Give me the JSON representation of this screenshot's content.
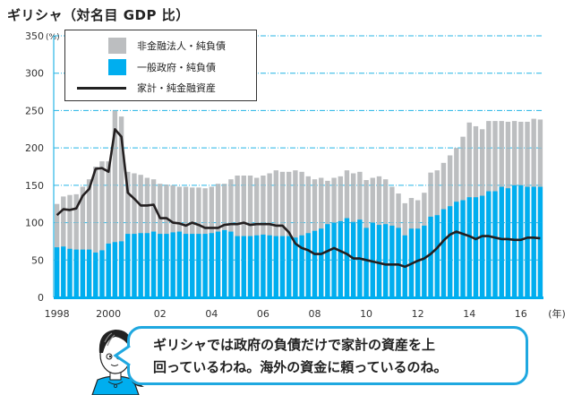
{
  "title": "ギリシャ（対名目 GDP 比）",
  "colors": {
    "gray": "#bcbec0",
    "blue": "#00aeef",
    "line": "#231f20",
    "grid": "#29b6e6",
    "bubble": "#1fa8e0"
  },
  "chart_data": {
    "type": "bar",
    "subtype": "overlapping-bars-with-line",
    "title": "ギリシャ（対名目 GDP 比）",
    "ylabel": "(%)",
    "xlabel": "(年)",
    "ylim": [
      0,
      350
    ],
    "yticks": [
      0,
      50,
      100,
      150,
      200,
      250,
      300,
      350
    ],
    "ytick_labels": [
      "0",
      "50",
      "100",
      "150",
      "200",
      "250",
      "300",
      "350"
    ],
    "y_unit_label": "(%)",
    "x_unit_label": "(年)",
    "xtick_labels": [
      {
        "label": "1998",
        "index": 0
      },
      {
        "label": "2000",
        "index": 8
      },
      {
        "label": "02",
        "index": 16
      },
      {
        "label": "04",
        "index": 24
      },
      {
        "label": "06",
        "index": 32
      },
      {
        "label": "08",
        "index": 40
      },
      {
        "label": "10",
        "index": 48
      },
      {
        "label": "12",
        "index": 56
      },
      {
        "label": "14",
        "index": 64
      },
      {
        "label": "16",
        "index": 72
      }
    ],
    "frequency": "quarterly",
    "start": "1998Q1",
    "grid": true,
    "legend_position": "top-left",
    "series": [
      {
        "name": "非金融法人・純負債",
        "kind": "bar-total",
        "color": "#bcbec0",
        "values": [
          125,
          135,
          137,
          138,
          148,
          158,
          175,
          182,
          182,
          250,
          242,
          168,
          166,
          164,
          160,
          158,
          152,
          151,
          150,
          148,
          148,
          147,
          147,
          146,
          148,
          152,
          152,
          158,
          163,
          163,
          163,
          160,
          163,
          166,
          170,
          168,
          168,
          170,
          168,
          162,
          158,
          160,
          156,
          160,
          162,
          170,
          166,
          168,
          157,
          160,
          162,
          158,
          148,
          139,
          126,
          133,
          130,
          140,
          167,
          170,
          180,
          190,
          200,
          215,
          234,
          229,
          225,
          236,
          236,
          236,
          235,
          236,
          235,
          235,
          239,
          238
        ]
      },
      {
        "name": "一般政府・純負債",
        "kind": "bar-front",
        "color": "#00aeef",
        "values": [
          67,
          68,
          65,
          64,
          64,
          64,
          60,
          63,
          72,
          74,
          75,
          85,
          85,
          86,
          86,
          88,
          85,
          85,
          87,
          88,
          85,
          85,
          85,
          85,
          86,
          88,
          90,
          88,
          82,
          82,
          82,
          83,
          84,
          83,
          82,
          82,
          82,
          80,
          83,
          86,
          89,
          92,
          98,
          100,
          102,
          106,
          101,
          104,
          93,
          100,
          97,
          98,
          96,
          93,
          83,
          92,
          92,
          96,
          108,
          110,
          118,
          122,
          128,
          130,
          134,
          134,
          136,
          142,
          142,
          148,
          146,
          150,
          150,
          148,
          148,
          148
        ]
      },
      {
        "name": "家計・純金融資産",
        "kind": "line",
        "color": "#231f20",
        "values": [
          110,
          118,
          117,
          119,
          136,
          145,
          172,
          173,
          168,
          225,
          215,
          140,
          132,
          123,
          123,
          124,
          106,
          106,
          100,
          99,
          96,
          100,
          97,
          93,
          93,
          93,
          97,
          98,
          98,
          100,
          97,
          98,
          98,
          98,
          96,
          96,
          87,
          72,
          66,
          63,
          58,
          58,
          62,
          66,
          62,
          58,
          52,
          52,
          50,
          48,
          46,
          44,
          44,
          44,
          41,
          45,
          49,
          52,
          58,
          66,
          76,
          84,
          88,
          85,
          82,
          78,
          82,
          82,
          80,
          78,
          78,
          77,
          77,
          80,
          80,
          79
        ]
      }
    ]
  },
  "bubble": {
    "line1": "ギリシャでは政府の負債だけで家計の資産を上",
    "line2": "回っているわね。海外の資金に頼っているのね。"
  }
}
